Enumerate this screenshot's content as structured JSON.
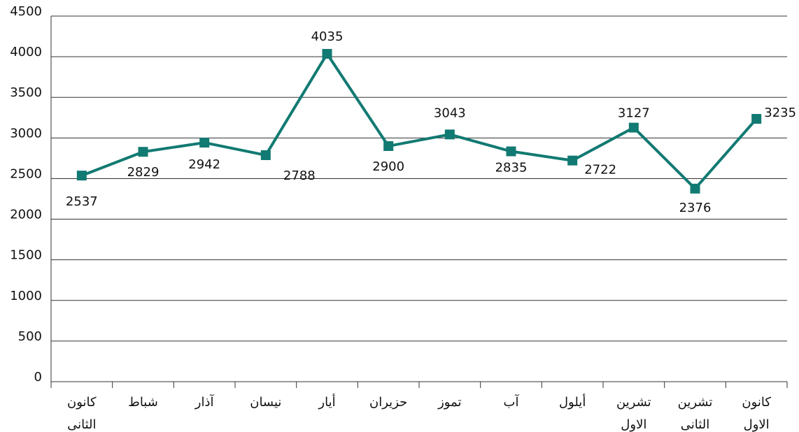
{
  "chart_data": {
    "type": "line",
    "categories": [
      "كانون الثانى",
      "شباط",
      "آذار",
      "نيسان",
      "أيار",
      "حزيران",
      "تموز",
      "آب",
      "أيلول",
      "تشرين الاول",
      "تشرين الثانى",
      "كانون الاول"
    ],
    "series": [
      {
        "name": null,
        "color": "#117a72",
        "values": [
          2537,
          2829,
          2942,
          2788,
          4035,
          2900,
          3043,
          2835,
          2722,
          3127,
          2376,
          3235
        ]
      }
    ],
    "ylim": [
      0,
      4500
    ],
    "yticks": [
      0,
      500,
      1000,
      1500,
      2000,
      2500,
      3000,
      3500,
      4000,
      4500
    ],
    "grid": true
  }
}
